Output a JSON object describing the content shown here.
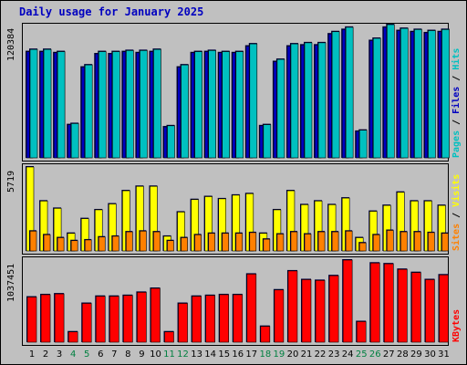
{
  "title": "Daily usage for January 2025",
  "colors": {
    "title": "#0000c0",
    "hits": "#00c0c0",
    "files": "#0000c0",
    "pages": "#00c0c0",
    "visits": "#ffff00",
    "sites": "#ff8000",
    "kbytes": "#ff0000",
    "weekday_label": "#000000",
    "weekend_label": "#008040"
  },
  "chart_data": [
    {
      "type": "bar",
      "panel": "hits-files-pages",
      "ymax_label": "120384",
      "legend": [
        {
          "name": "Pages",
          "color": "#00c0c0"
        },
        {
          "name": "Files",
          "color": "#0000c0"
        },
        {
          "name": "Hits",
          "color": "#00c0c0"
        }
      ],
      "categories": [
        "1",
        "2",
        "3",
        "4",
        "5",
        "6",
        "7",
        "8",
        "9",
        "10",
        "11",
        "12",
        "13",
        "14",
        "15",
        "16",
        "17",
        "18",
        "19",
        "20",
        "21",
        "22",
        "23",
        "24",
        "25",
        "26",
        "27",
        "28",
        "29",
        "30",
        "31"
      ],
      "series": [
        {
          "name": "Hits",
          "values": [
            98000,
            98000,
            96000,
            31000,
            84000,
            96000,
            96000,
            97000,
            97000,
            98000,
            29000,
            84000,
            96000,
            97000,
            96000,
            96000,
            103000,
            30000,
            89000,
            103000,
            104000,
            104000,
            114000,
            118000,
            25000,
            108000,
            120384,
            117000,
            116000,
            115000,
            116000
          ]
        },
        {
          "name": "Files",
          "values": [
            96000,
            96000,
            95000,
            30000,
            82000,
            94000,
            94000,
            96000,
            95000,
            96000,
            28000,
            82000,
            95000,
            96000,
            95000,
            95000,
            101000,
            29000,
            87000,
            101000,
            102000,
            102000,
            112000,
            116000,
            24000,
            106000,
            118000,
            115000,
            114000,
            113000,
            114000
          ]
        }
      ]
    },
    {
      "type": "bar",
      "panel": "visits-sites",
      "ymax_label": "5719",
      "legend": [
        {
          "name": "Sites",
          "color": "#ff8000"
        },
        {
          "name": "Visits",
          "color": "#ffff00"
        }
      ],
      "categories": [
        "1",
        "2",
        "3",
        "4",
        "5",
        "6",
        "7",
        "8",
        "9",
        "10",
        "11",
        "12",
        "13",
        "14",
        "15",
        "16",
        "17",
        "18",
        "19",
        "20",
        "21",
        "22",
        "23",
        "24",
        "25",
        "26",
        "27",
        "28",
        "29",
        "30",
        "31"
      ],
      "series": [
        {
          "name": "Visits",
          "values": [
            5719,
            3400,
            2900,
            1200,
            2200,
            2800,
            3200,
            4100,
            4400,
            4400,
            1000,
            2650,
            3500,
            3700,
            3550,
            3800,
            3900,
            1200,
            2800,
            4100,
            3150,
            3400,
            3150,
            3600,
            900,
            2700,
            3100,
            4000,
            3400,
            3400,
            3100
          ]
        },
        {
          "name": "Sites",
          "values": [
            1350,
            1100,
            900,
            700,
            750,
            950,
            1000,
            1300,
            1350,
            1300,
            700,
            900,
            1100,
            1200,
            1200,
            1200,
            1250,
            800,
            1150,
            1300,
            1150,
            1300,
            1300,
            1350,
            550,
            1100,
            1400,
            1300,
            1300,
            1250,
            1200
          ]
        }
      ]
    },
    {
      "type": "bar",
      "panel": "kbytes",
      "ymax_label": "1037451",
      "legend": [
        {
          "name": "KBytes",
          "color": "#ff0000"
        }
      ],
      "categories": [
        "1",
        "2",
        "3",
        "4",
        "5",
        "6",
        "7",
        "8",
        "9",
        "10",
        "11",
        "12",
        "13",
        "14",
        "15",
        "16",
        "17",
        "18",
        "19",
        "20",
        "21",
        "22",
        "23",
        "24",
        "25",
        "26",
        "27",
        "28",
        "29",
        "30",
        "31"
      ],
      "series": [
        {
          "name": "KBytes",
          "values": [
            570000,
            600000,
            610000,
            130000,
            490000,
            580000,
            580000,
            590000,
            630000,
            680000,
            130000,
            490000,
            580000,
            590000,
            600000,
            600000,
            860000,
            200000,
            660000,
            900000,
            790000,
            780000,
            840000,
            1037451,
            260000,
            1000000,
            990000,
            920000,
            880000,
            790000,
            850000
          ]
        }
      ]
    }
  ],
  "x_labels": [
    "1",
    "2",
    "3",
    "4",
    "5",
    "6",
    "7",
    "8",
    "9",
    "10",
    "11",
    "12",
    "13",
    "14",
    "15",
    "16",
    "17",
    "18",
    "19",
    "20",
    "21",
    "22",
    "23",
    "24",
    "25",
    "26",
    "27",
    "28",
    "29",
    "30",
    "31"
  ],
  "weekend_days": [
    "4",
    "5",
    "11",
    "12",
    "18",
    "19",
    "25",
    "26"
  ]
}
